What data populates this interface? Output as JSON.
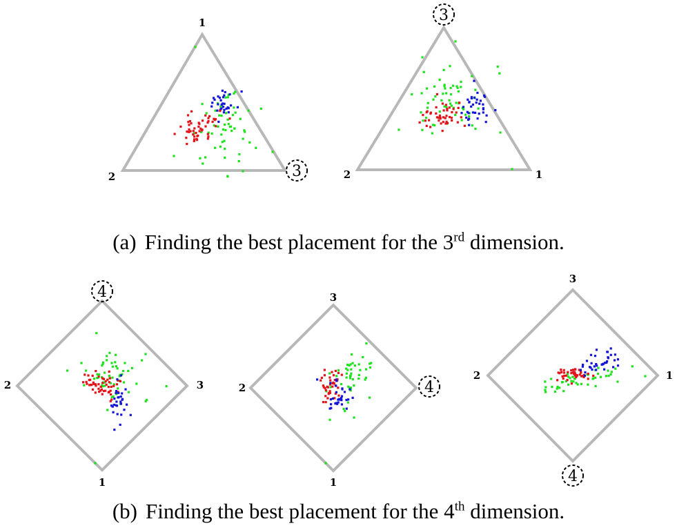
{
  "colors": {
    "border": "#b8b8b8",
    "red": "#e0141a",
    "green": "#1fe21f",
    "blue": "#1515d8"
  },
  "captions": {
    "a": {
      "tag": "(a)",
      "pre": "Finding the best placement for the 3",
      "sup": "rd",
      "post": " dimension."
    },
    "b": {
      "tag": "(b)",
      "pre": "Finding the best placement for the 4",
      "sup": "th",
      "post": " dimension."
    }
  },
  "plots": [
    {
      "id": "a1",
      "labels": {
        "top": "1",
        "left": "2",
        "right": "3"
      },
      "circled": "right"
    },
    {
      "id": "a2",
      "labels": {
        "top": "3",
        "left": "2",
        "right": "1"
      },
      "circled": "top"
    },
    {
      "id": "b1",
      "labels": {
        "top": "4",
        "left": "2",
        "right": "3",
        "bottom": "1"
      },
      "circled": "top"
    },
    {
      "id": "b2",
      "labels": {
        "top": "3",
        "left": "2",
        "right": "4",
        "bottom": "1"
      },
      "circled": "right"
    },
    {
      "id": "b3",
      "labels": {
        "top": "3",
        "left": "2",
        "right": "1",
        "bottom": "4"
      },
      "circled": "bottom"
    }
  ]
}
